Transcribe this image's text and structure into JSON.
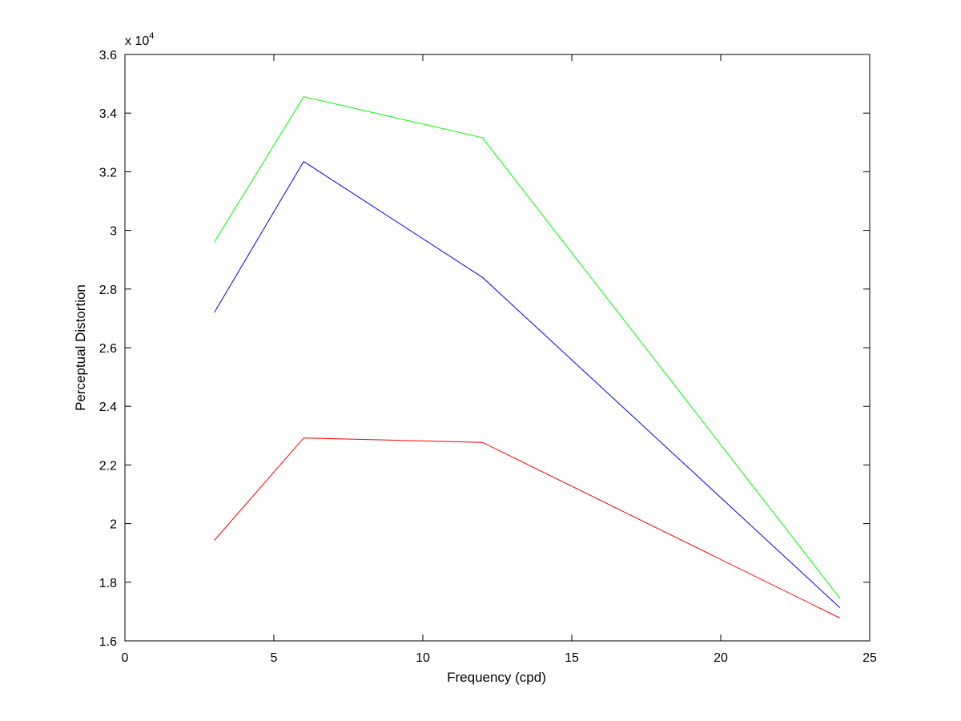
{
  "chart_data": {
    "type": "line",
    "title": "",
    "xlabel": "Frequency (cpd)",
    "ylabel": "Perceptual Distortion",
    "xlim": [
      0,
      25
    ],
    "ylim": [
      16000,
      36000
    ],
    "x_ticks": [
      0,
      5,
      10,
      15,
      20,
      25
    ],
    "x_tick_labels": [
      "0",
      "5",
      "10",
      "15",
      "20",
      "25"
    ],
    "y_ticks": [
      16000,
      18000,
      20000,
      22000,
      24000,
      26000,
      28000,
      30000,
      32000,
      34000,
      36000
    ],
    "y_tick_labels": [
      "1.6",
      "1.8",
      "2",
      "2.2",
      "2.4",
      "2.6",
      "2.8",
      "3",
      "3.2",
      "3.4",
      "3.6"
    ],
    "y_exponent": {
      "base": "x 10",
      "power": "4"
    },
    "grid": false,
    "legend": "none",
    "x": [
      3,
      6,
      12,
      24
    ],
    "series": [
      {
        "color": "#00ff00",
        "values": [
          29600,
          34560,
          33160,
          17450
        ]
      },
      {
        "color": "#0000ff",
        "values": [
          27200,
          32350,
          28400,
          17130
        ]
      },
      {
        "color": "#ff0000",
        "values": [
          19430,
          22920,
          22770,
          16780
        ]
      }
    ]
  }
}
